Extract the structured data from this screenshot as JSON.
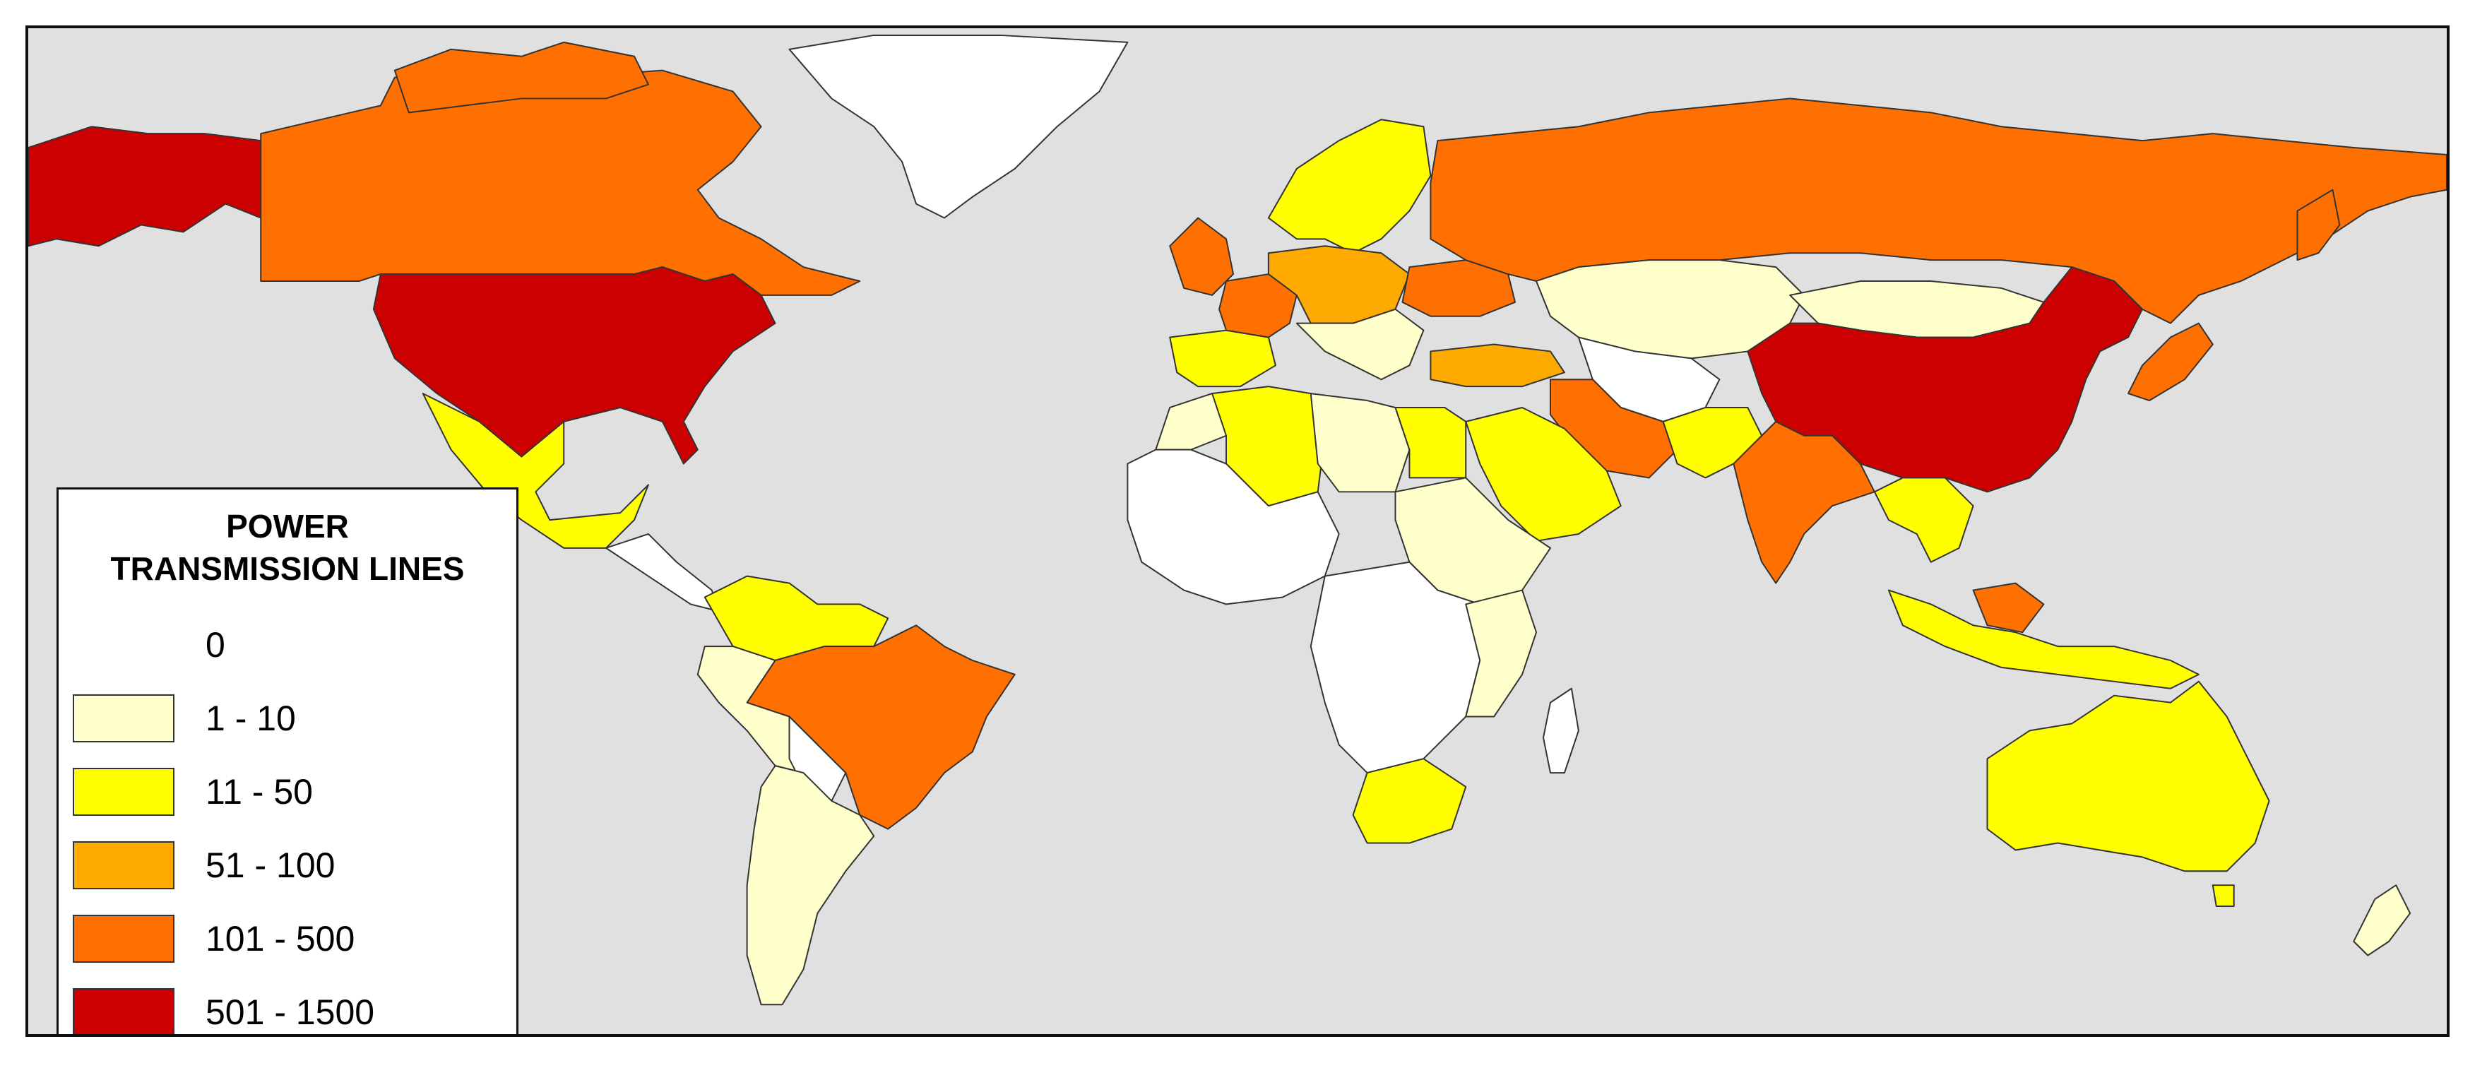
{
  "legend": {
    "title_line1": "POWER",
    "title_line2": "TRANSMISSION LINES",
    "classes": [
      {
        "label": "0",
        "color": "#ffffff",
        "swatch_visible": false
      },
      {
        "label": "1 - 10",
        "color": "#ffffcc",
        "swatch_visible": true
      },
      {
        "label": "11 - 50",
        "color": "#ffff00",
        "swatch_visible": true
      },
      {
        "label": "51 - 100",
        "color": "#ffaa00",
        "swatch_visible": true
      },
      {
        "label": "101 - 500",
        "color": "#ff7000",
        "swatch_visible": true
      },
      {
        "label": "501 - 1500",
        "color": "#cc0000",
        "swatch_visible": true
      }
    ]
  },
  "map": {
    "ocean_color": "#e0e0e0",
    "regions": [
      {
        "name": "Alaska",
        "class": "501 - 1500"
      },
      {
        "name": "Canada",
        "class": "101 - 500"
      },
      {
        "name": "United States",
        "class": "501 - 1500"
      },
      {
        "name": "Mexico",
        "class": "11 - 50"
      },
      {
        "name": "Greenland",
        "class": "0"
      },
      {
        "name": "Brazil",
        "class": "101 - 500"
      },
      {
        "name": "Colombia",
        "class": "11 - 50"
      },
      {
        "name": "South America (other)",
        "class": "1 - 10"
      },
      {
        "name": "United Kingdom",
        "class": "101 - 500"
      },
      {
        "name": "Scandinavia",
        "class": "11 - 50"
      },
      {
        "name": "Russia",
        "class": "101 - 500"
      },
      {
        "name": "Kazakhstan",
        "class": "1 - 10"
      },
      {
        "name": "Mongolia",
        "class": "1 - 10"
      },
      {
        "name": "China",
        "class": "501 - 1500"
      },
      {
        "name": "India",
        "class": "101 - 500"
      },
      {
        "name": "Iran",
        "class": "101 - 500"
      },
      {
        "name": "Turkey",
        "class": "51 - 100"
      },
      {
        "name": "Saudi Arabia",
        "class": "11 - 50"
      },
      {
        "name": "Algeria",
        "class": "11 - 50"
      },
      {
        "name": "Egypt",
        "class": "11 - 50"
      },
      {
        "name": "South Africa",
        "class": "11 - 50"
      },
      {
        "name": "Sub-Saharan Africa",
        "class": "0"
      },
      {
        "name": "Australia",
        "class": "11 - 50"
      },
      {
        "name": "Japan",
        "class": "101 - 500"
      },
      {
        "name": "Indonesia",
        "class": "11 - 50"
      }
    ]
  }
}
